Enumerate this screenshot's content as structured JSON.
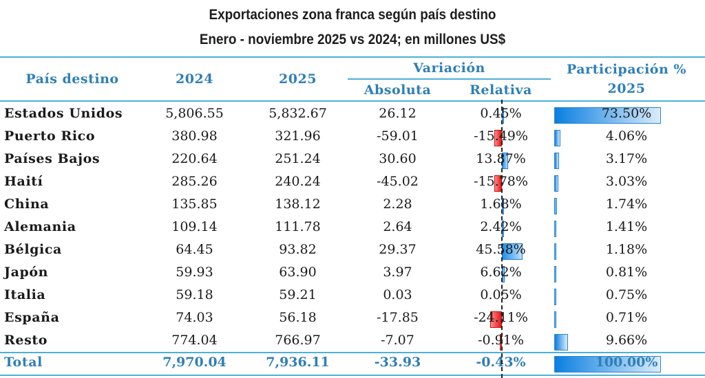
{
  "title": "Exportaciones zona franca según país destino",
  "subtitle": "Enero - noviembre 2025 vs 2024; en millones US$",
  "headers": {
    "country": "País destino",
    "y2024": "2024",
    "y2025": "2025",
    "variation": "Variación",
    "absolute": "Absoluta",
    "relative": "Relativa",
    "share": "Participación %",
    "share_year": "2025"
  },
  "rows": [
    {
      "country": "Estados Unidos",
      "v2024": "5,806.55",
      "v2025": "5,832.67",
      "abs": "26.12",
      "rel": "0.45%",
      "share": "73.50%"
    },
    {
      "country": "Puerto Rico",
      "v2024": "380.98",
      "v2025": "321.96",
      "abs": "-59.01",
      "rel": "-15.49%",
      "share": "4.06%"
    },
    {
      "country": "Países Bajos",
      "v2024": "220.64",
      "v2025": "251.24",
      "abs": "30.60",
      "rel": "13.87%",
      "share": "3.17%"
    },
    {
      "country": "Haití",
      "v2024": "285.26",
      "v2025": "240.24",
      "abs": "-45.02",
      "rel": "-15.78%",
      "share": "3.03%"
    },
    {
      "country": "China",
      "v2024": "135.85",
      "v2025": "138.12",
      "abs": "2.28",
      "rel": "1.68%",
      "share": "1.74%"
    },
    {
      "country": "Alemania",
      "v2024": "109.14",
      "v2025": "111.78",
      "abs": "2.64",
      "rel": "2.42%",
      "share": "1.41%"
    },
    {
      "country": "Bélgica",
      "v2024": "64.45",
      "v2025": "93.82",
      "abs": "29.37",
      "rel": "45.58%",
      "share": "1.18%"
    },
    {
      "country": "Japón",
      "v2024": "59.93",
      "v2025": "63.90",
      "abs": "3.97",
      "rel": "6.62%",
      "share": "0.81%"
    },
    {
      "country": "Italia",
      "v2024": "59.18",
      "v2025": "59.21",
      "abs": "0.03",
      "rel": "0.05%",
      "share": "0.75%"
    },
    {
      "country": "España",
      "v2024": "74.03",
      "v2025": "56.18",
      "abs": "-17.85",
      "rel": "-24.11%",
      "share": "0.71%"
    },
    {
      "country": "Resto",
      "v2024": "774.04",
      "v2025": "766.97",
      "abs": "-7.07",
      "rel": "-0.91%",
      "share": "9.66%"
    }
  ],
  "total": {
    "country": "Total",
    "v2024": "7,970.04",
    "v2025": "7,936.11",
    "abs": "-33.93",
    "rel": "-0.43%",
    "share": "100.00%"
  },
  "colors": {
    "header_blue": "#2f7fb5",
    "rule_blue": "#4ab0d9",
    "bar_positive": "#1f8ee8",
    "bar_negative": "#e8151b"
  },
  "chart_data": {
    "type": "table",
    "title": "Exportaciones zona franca según país destino",
    "subtitle": "Enero - noviembre 2025 vs 2024; en millones US$",
    "columns": [
      "País destino",
      "2024",
      "2025",
      "Variación Absoluta",
      "Variación Relativa (%)",
      "Participación % 2025"
    ],
    "categories": [
      "Estados Unidos",
      "Puerto Rico",
      "Países Bajos",
      "Haití",
      "China",
      "Alemania",
      "Bélgica",
      "Japón",
      "Italia",
      "España",
      "Resto",
      "Total"
    ],
    "series": [
      {
        "name": "2024",
        "values": [
          5806.55,
          380.98,
          220.64,
          285.26,
          135.85,
          109.14,
          64.45,
          59.93,
          59.18,
          74.03,
          774.04,
          7970.04
        ]
      },
      {
        "name": "2025",
        "values": [
          5832.67,
          321.96,
          251.24,
          240.24,
          138.12,
          111.78,
          93.82,
          63.9,
          59.21,
          56.18,
          766.97,
          7936.11
        ]
      },
      {
        "name": "Variación Absoluta",
        "values": [
          26.12,
          -59.01,
          30.6,
          -45.02,
          2.28,
          2.64,
          29.37,
          3.97,
          0.03,
          -17.85,
          -7.07,
          -33.93
        ]
      },
      {
        "name": "Variación Relativa",
        "values": [
          0.45,
          -15.49,
          13.87,
          -15.78,
          1.68,
          2.42,
          45.58,
          6.62,
          0.05,
          -24.11,
          -0.91,
          -0.43
        ]
      },
      {
        "name": "Participación % 2025",
        "values": [
          73.5,
          4.06,
          3.17,
          3.03,
          1.74,
          1.41,
          1.18,
          0.81,
          0.75,
          0.71,
          9.66,
          100.0
        ]
      }
    ]
  }
}
